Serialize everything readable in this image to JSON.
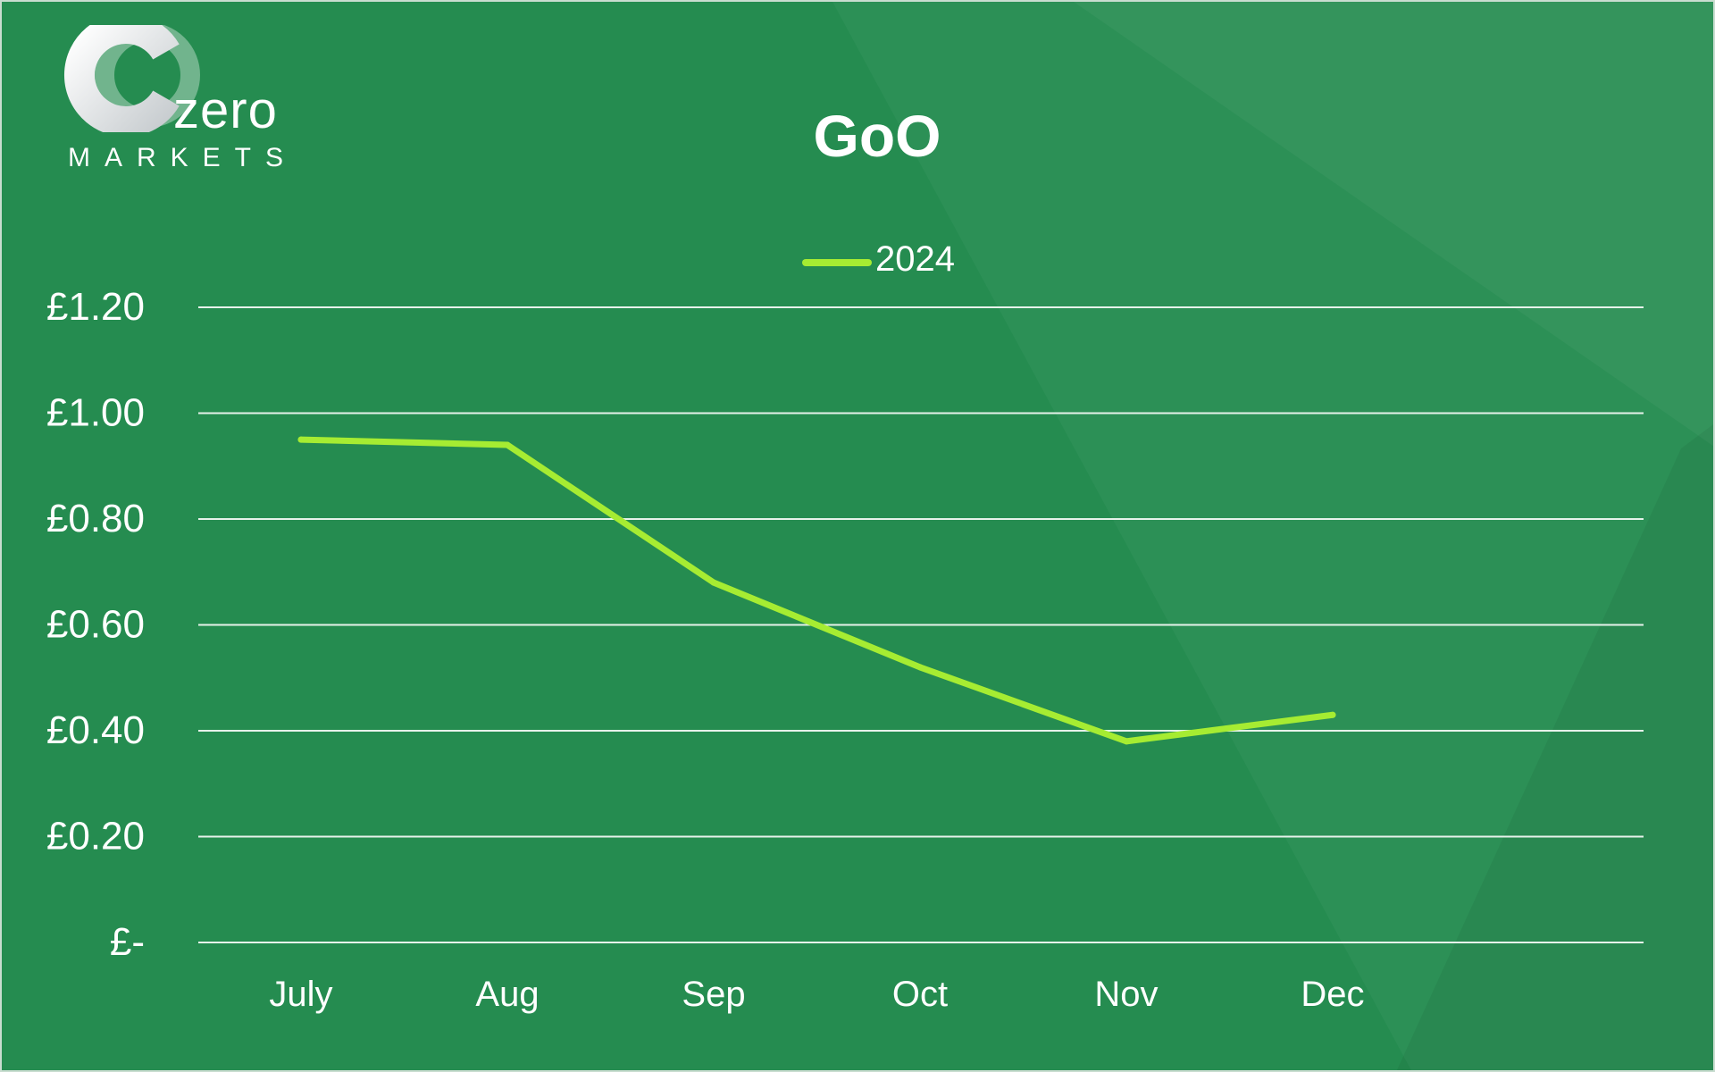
{
  "logo": {
    "word": "zero",
    "sub": "MARKETS"
  },
  "colors": {
    "background": "#258c50",
    "series": "#a6ec32",
    "grid": "#e6f2ea",
    "text": "#ffffff"
  },
  "chart_data": {
    "type": "line",
    "title": "GoO",
    "xlabel": "",
    "ylabel": "",
    "categories": [
      "July",
      "Aug",
      "Sep",
      "Oct",
      "Nov",
      "Dec"
    ],
    "series": [
      {
        "name": "2024",
        "values": [
          0.95,
          0.94,
          0.68,
          0.52,
          0.38,
          0.43
        ]
      }
    ],
    "ylim": [
      0,
      1.2
    ],
    "yticks": [
      0,
      0.2,
      0.4,
      0.6,
      0.8,
      1.0,
      1.2
    ],
    "ytick_labels": [
      "£-",
      "£0.20",
      "£0.40",
      "£0.60",
      "£0.80",
      "£1.00",
      "£1.20"
    ],
    "grid": true,
    "legend": "top-center"
  }
}
